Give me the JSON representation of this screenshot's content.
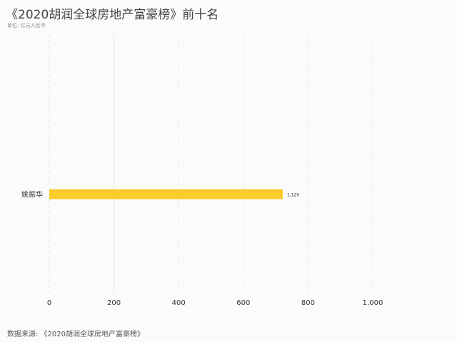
{
  "page": {
    "title": "《2020胡润全球房地产富豪榜》前十名",
    "unit": "单位: 亿元人民币",
    "source": "数据来源: 《2020胡润全球房地产富豪榜》"
  },
  "colors": {
    "bar": "#fccc2c",
    "grid": "#e6e6dc",
    "axis_text": "#333333"
  },
  "chart_data": {
    "type": "bar",
    "orientation": "horizontal",
    "title": "《2020胡润全球房地产富豪榜》前十名",
    "subtitle": "单位: 亿元人民币",
    "categories": [
      "姚振华"
    ],
    "values": [
      1120
    ],
    "value_labels": [
      "1,120"
    ],
    "xlim": [
      0,
      1000
    ],
    "xticks": [
      0,
      200,
      400,
      600,
      800,
      1000
    ],
    "xtick_labels": [
      "0",
      "200",
      "400",
      "600",
      "800",
      "1,000"
    ],
    "grid": true,
    "xlabel": "",
    "ylabel": ""
  }
}
